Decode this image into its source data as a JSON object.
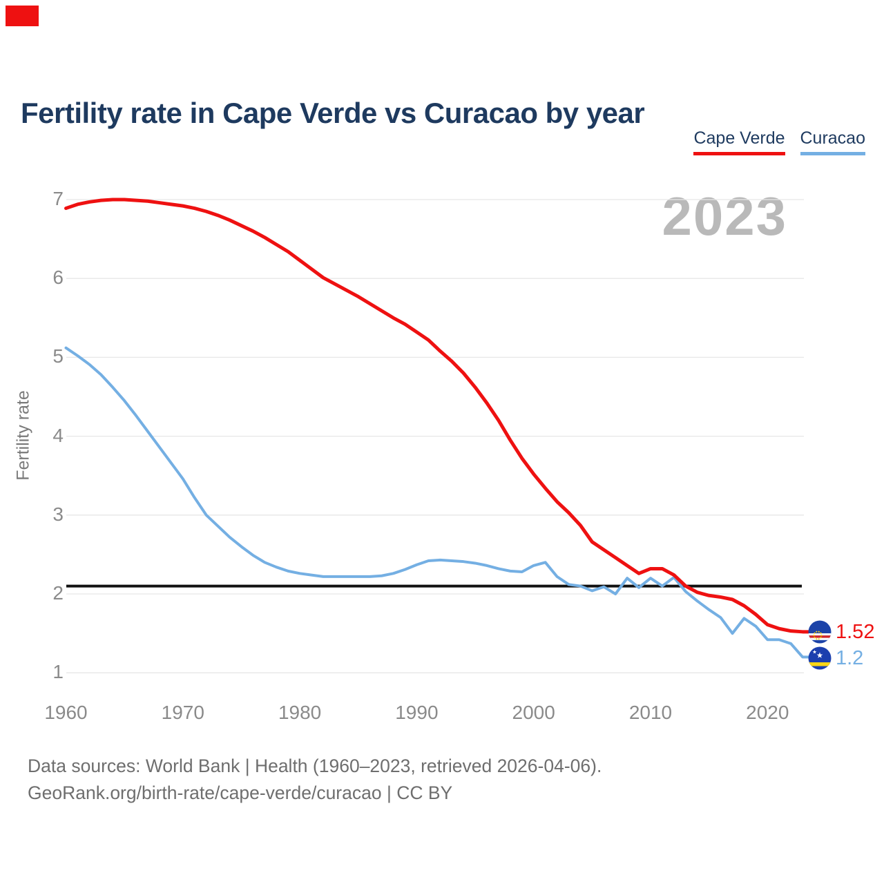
{
  "corner_marker": {
    "color": "#ee1111"
  },
  "title": "Fertility rate in Cape Verde vs Curacao by year",
  "legend": [
    {
      "label": "Cape Verde",
      "color": "#ee1111"
    },
    {
      "label": "Curacao",
      "color": "#74afe3"
    }
  ],
  "watermark": "2023",
  "ylabel": "Fertility rate",
  "end_labels": [
    {
      "series": "Cape Verde",
      "value": "1.52",
      "color": "#ee1111",
      "flag": "cape-verde-flag"
    },
    {
      "series": "Curacao",
      "value": "1.2",
      "color": "#74afe3",
      "flag": "curacao-flag"
    }
  ],
  "footer": {
    "line1": "Data sources: World Bank | Health (1960–2023, retrieved 2026-04-06).",
    "line2": "GeoRank.org/birth-rate/cape-verde/curacao | CC BY"
  },
  "chart_data": {
    "type": "line",
    "title": "Fertility rate in Cape Verde vs Curacao by year",
    "xlabel": "",
    "ylabel": "Fertility rate",
    "ylim": [
      1,
      7
    ],
    "grid": "horizontal",
    "legend_position": "top-right",
    "x_ticks": [
      1960,
      1970,
      1980,
      1990,
      2000,
      2010,
      2020
    ],
    "y_ticks": [
      1,
      2,
      3,
      4,
      5,
      6,
      7
    ],
    "reference_line": {
      "value": 2.1,
      "color": "#111111"
    },
    "x": [
      1960,
      1961,
      1962,
      1963,
      1964,
      1965,
      1966,
      1967,
      1968,
      1969,
      1970,
      1971,
      1972,
      1973,
      1974,
      1975,
      1976,
      1977,
      1978,
      1979,
      1980,
      1981,
      1982,
      1983,
      1984,
      1985,
      1986,
      1987,
      1988,
      1989,
      1990,
      1991,
      1992,
      1993,
      1994,
      1995,
      1996,
      1997,
      1998,
      1999,
      2000,
      2001,
      2002,
      2003,
      2004,
      2005,
      2006,
      2007,
      2008,
      2009,
      2010,
      2011,
      2012,
      2013,
      2014,
      2015,
      2016,
      2017,
      2018,
      2019,
      2020,
      2021,
      2022,
      2023
    ],
    "series": [
      {
        "name": "Cape Verde",
        "color": "#ee1111",
        "end_value": 1.52,
        "values": [
          6.89,
          6.94,
          6.97,
          6.99,
          7.0,
          7.0,
          6.99,
          6.98,
          6.96,
          6.94,
          6.92,
          6.89,
          6.85,
          6.8,
          6.74,
          6.67,
          6.6,
          6.52,
          6.43,
          6.34,
          6.23,
          6.12,
          6.01,
          5.93,
          5.85,
          5.77,
          5.68,
          5.59,
          5.5,
          5.42,
          5.32,
          5.22,
          5.08,
          4.95,
          4.8,
          4.62,
          4.42,
          4.2,
          3.95,
          3.72,
          3.52,
          3.34,
          3.17,
          3.03,
          2.87,
          2.66,
          2.56,
          2.46,
          2.36,
          2.26,
          2.32,
          2.32,
          2.24,
          2.1,
          2.02,
          1.98,
          1.96,
          1.93,
          1.85,
          1.74,
          1.61,
          1.56,
          1.53,
          1.52
        ]
      },
      {
        "name": "Curacao",
        "color": "#74afe3",
        "end_value": 1.2,
        "values": [
          5.12,
          5.02,
          4.91,
          4.78,
          4.62,
          4.45,
          4.26,
          4.06,
          3.86,
          3.66,
          3.46,
          3.22,
          3.0,
          2.86,
          2.72,
          2.6,
          2.49,
          2.4,
          2.34,
          2.29,
          2.26,
          2.24,
          2.22,
          2.22,
          2.22,
          2.22,
          2.22,
          2.23,
          2.26,
          2.31,
          2.37,
          2.42,
          2.43,
          2.42,
          2.41,
          2.39,
          2.36,
          2.32,
          2.29,
          2.28,
          2.36,
          2.4,
          2.22,
          2.12,
          2.1,
          2.04,
          2.09,
          2.0,
          2.2,
          2.08,
          2.2,
          2.1,
          2.21,
          2.03,
          1.91,
          1.8,
          1.7,
          1.5,
          1.69,
          1.59,
          1.42,
          1.42,
          1.37,
          1.2
        ]
      }
    ]
  }
}
